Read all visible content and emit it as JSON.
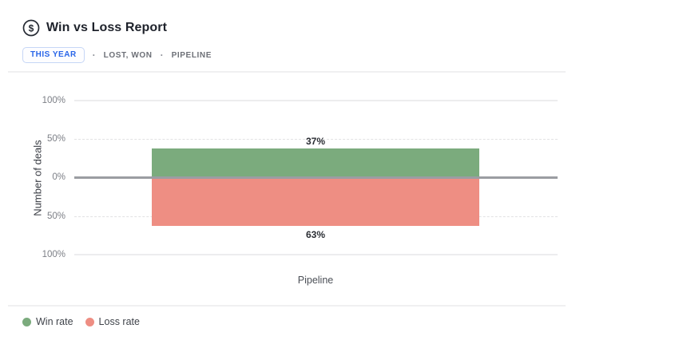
{
  "header": {
    "title": "Win vs Loss Report",
    "icon": "dollar-circle-icon"
  },
  "filters": {
    "time_range": "THIS YEAR",
    "separator": "·",
    "deal_status": "LOST, WON",
    "pipeline_filter": "PIPELINE"
  },
  "chart_data": {
    "type": "bar",
    "title": "Win vs Loss Report",
    "subtype": "diverging-vertical",
    "categories": [
      "Pipeline"
    ],
    "series": [
      {
        "name": "Win rate",
        "values": [
          37
        ],
        "color": "#7bab7d",
        "direction": "up"
      },
      {
        "name": "Loss rate",
        "values": [
          63
        ],
        "color": "#ee8e83",
        "direction": "down"
      }
    ],
    "bar_labels": [
      "37%",
      "63%"
    ],
    "xlabel": "Pipeline",
    "ylabel": "Number of deals",
    "yticks": [
      "100%",
      "50%",
      "0%",
      "50%",
      "100%"
    ],
    "ylim": [
      -100,
      100
    ],
    "grid": true,
    "zero_line": true,
    "legend_position": "bottom-left"
  },
  "legend": {
    "items": [
      {
        "label": "Win rate",
        "color": "#7bab7d"
      },
      {
        "label": "Loss rate",
        "color": "#ee8e83"
      }
    ]
  },
  "colors": {
    "win": "#7bab7d",
    "loss": "#ee8e83",
    "accent_blue": "#2a66e8",
    "zero_line": "#9b9da2",
    "gridline": "#e2e2e3",
    "muted_text": "#6d7077"
  }
}
